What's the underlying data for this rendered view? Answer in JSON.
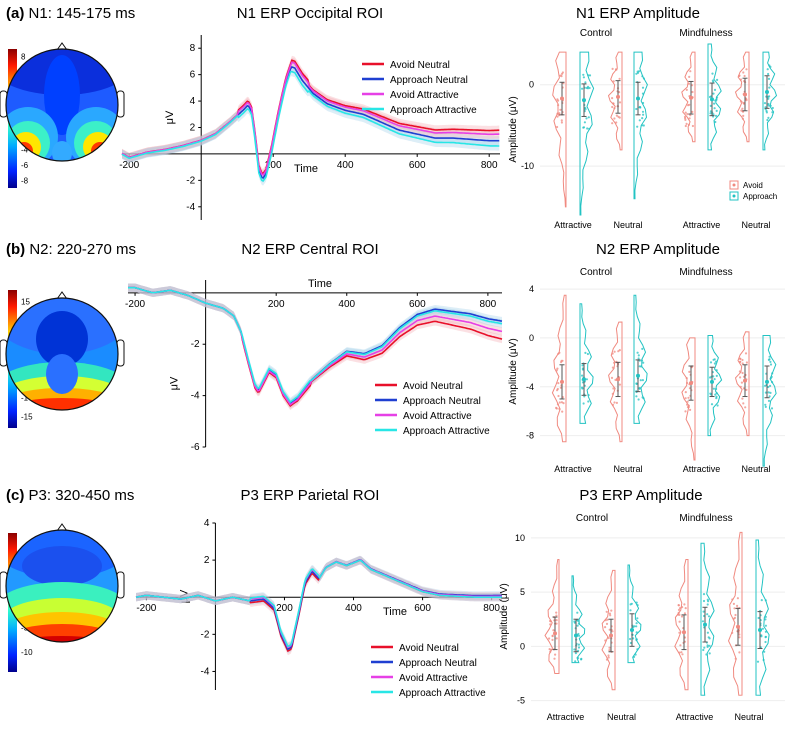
{
  "colors": {
    "avoid_neutral": "#e8102a",
    "approach_neutral": "#1f3fd1",
    "avoid_attractive": "#e640e6",
    "approach_attractive": "#28e6e6",
    "violin_avoid": "#f08a80",
    "violin_approach": "#22c3c3",
    "ci_avoid": "#f3a6b0",
    "ci_approach": "#9fcde8"
  },
  "legend_labels": [
    "Avoid Neutral",
    "Approach Neutral",
    "Avoid Attractive",
    "Approach Attractive"
  ],
  "violin_legend": [
    "Avoid",
    "Approach"
  ],
  "chart_data": [
    {
      "type": "topomap",
      "panel": "(a)",
      "title": "N1: 145-175 ms",
      "colorbar_ticks": [
        "8",
        "6",
        "4",
        "2",
        "0",
        "-2",
        "-4",
        "-6",
        "-8"
      ],
      "colorbar_range": [
        -9,
        9
      ],
      "pattern": "negative bilateral occipital"
    },
    {
      "type": "line",
      "title": "N1 ERP Occipital ROI",
      "xlabel": "Time",
      "ylabel": "μV",
      "xlim": [
        -220,
        830
      ],
      "ylim": [
        -5,
        9
      ],
      "x_ticks": [
        -200,
        200,
        400,
        600,
        800
      ],
      "y_ticks": [
        -4,
        -2,
        2,
        4,
        6,
        8
      ],
      "keypoints": [
        [
          -220,
          0
        ],
        [
          -200,
          -0.3
        ],
        [
          -150,
          0.1
        ],
        [
          -100,
          0.3
        ],
        [
          -50,
          0.6
        ],
        [
          0,
          1.0
        ],
        [
          40,
          1.5
        ],
        [
          80,
          2.4
        ],
        [
          120,
          3.4
        ],
        [
          130,
          3.7
        ],
        [
          140,
          3.2
        ],
        [
          150,
          1.2
        ],
        [
          160,
          -1.2
        ],
        [
          170,
          -1.9
        ],
        [
          180,
          -1.5
        ],
        [
          195,
          0.2
        ],
        [
          215,
          3.0
        ],
        [
          235,
          5.4
        ],
        [
          250,
          6.6
        ],
        [
          260,
          6.5
        ],
        [
          280,
          5.6
        ],
        [
          310,
          4.6
        ],
        [
          350,
          3.8
        ],
        [
          400,
          3.3
        ],
        [
          450,
          3.0
        ],
        [
          500,
          2.4
        ],
        [
          550,
          1.8
        ],
        [
          600,
          1.5
        ],
        [
          650,
          1.2
        ],
        [
          700,
          1.2
        ],
        [
          750,
          1.1
        ],
        [
          800,
          1.0
        ],
        [
          830,
          1.0
        ]
      ],
      "series": [
        {
          "name": "Avoid Neutral",
          "offsets": [
            0.2,
            0.8
          ],
          "peak": 0.3
        },
        {
          "name": "Approach Neutral",
          "offsets": [
            0.0,
            0.0
          ],
          "peak": 0.0
        },
        {
          "name": "Avoid Attractive",
          "offsets": [
            0.15,
            0.5
          ],
          "peak": 0.2
        },
        {
          "name": "Approach Attractive",
          "offsets": [
            -0.15,
            -0.4
          ],
          "peak": -0.2
        }
      ]
    },
    {
      "type": "violin",
      "title": "N1 ERP  Amplitude",
      "ylabel": "Amplitude (μV)",
      "ylim": [
        -16,
        5
      ],
      "y_ticks": [
        -10,
        0
      ],
      "groups": [
        "Control",
        "Mindfulness"
      ],
      "categories": [
        "Attractive",
        "Neutral"
      ],
      "series": [
        {
          "name": "Avoid",
          "means": [
            [
              -1.7,
              -1.5
            ],
            [
              -1.6,
              -1.2
            ]
          ],
          "min": [
            [
              -15,
              -8
            ],
            [
              -7,
              -7
            ]
          ],
          "max": [
            [
              4,
              4
            ],
            [
              4,
              4
            ]
          ],
          "sd": [
            [
              2,
              2
            ],
            [
              2,
              2
            ]
          ]
        },
        {
          "name": "Approach",
          "means": [
            [
              -1.9,
              -1.7
            ],
            [
              -1.8,
              -0.9
            ]
          ],
          "min": [
            [
              -16,
              -14
            ],
            [
              -8,
              -8
            ]
          ],
          "max": [
            [
              4,
              4
            ],
            [
              5,
              4
            ]
          ],
          "sd": [
            [
              2,
              2
            ],
            [
              2,
              2
            ]
          ]
        }
      ]
    },
    {
      "type": "topomap",
      "panel": "(b)",
      "title": "N2: 220-270 ms",
      "colorbar_ticks": [
        "15",
        "10",
        "5",
        "0",
        "-5",
        "-10",
        "-15"
      ],
      "colorbar_range": [
        -18,
        18
      ],
      "pattern": "positive posterior, negative frontal-central"
    },
    {
      "type": "line",
      "title": "N2 ERP Central ROI",
      "xlabel": "Time",
      "ylabel": "μV",
      "xlim": [
        -220,
        840
      ],
      "ylim": [
        -6,
        0.5
      ],
      "x_ticks": [
        -200,
        200,
        400,
        600,
        800
      ],
      "y_ticks": [
        -2,
        -4,
        -6
      ],
      "keypoints": [
        [
          -220,
          0.2
        ],
        [
          -200,
          0.2
        ],
        [
          -150,
          0.0
        ],
        [
          -100,
          0.1
        ],
        [
          -50,
          -0.1
        ],
        [
          0,
          -0.4
        ],
        [
          50,
          -0.6
        ],
        [
          80,
          -0.9
        ],
        [
          100,
          -1.5
        ],
        [
          120,
          -2.6
        ],
        [
          140,
          -3.6
        ],
        [
          150,
          -3.8
        ],
        [
          165,
          -3.4
        ],
        [
          180,
          -3.0
        ],
        [
          200,
          -3.2
        ],
        [
          220,
          -3.9
        ],
        [
          240,
          -4.3
        ],
        [
          260,
          -4.1
        ],
        [
          300,
          -3.4
        ],
        [
          350,
          -2.8
        ],
        [
          400,
          -2.3
        ],
        [
          450,
          -2.4
        ],
        [
          500,
          -2.1
        ],
        [
          550,
          -1.4
        ],
        [
          600,
          -0.9
        ],
        [
          650,
          -0.7
        ],
        [
          700,
          -0.8
        ],
        [
          750,
          -0.9
        ],
        [
          800,
          -1.1
        ],
        [
          840,
          -1.2
        ]
      ],
      "series": [
        {
          "name": "Avoid Neutral",
          "offsets": [
            0.0,
            -0.6
          ],
          "peak": -0.1
        },
        {
          "name": "Approach Neutral",
          "offsets": [
            0.0,
            0.1
          ],
          "peak": 0.0
        },
        {
          "name": "Avoid Attractive",
          "offsets": [
            0.0,
            -0.3
          ],
          "peak": -0.05
        },
        {
          "name": "Approach Attractive",
          "offsets": [
            0.0,
            0.0
          ],
          "peak": 0.05
        }
      ]
    },
    {
      "type": "violin",
      "title": "N2 ERP  Amplitude",
      "ylabel": "Amplitude (μV)",
      "ylim": [
        -10,
        4.5
      ],
      "y_ticks": [
        4,
        0,
        -4,
        -8
      ],
      "groups": [
        "Control",
        "Mindfulness"
      ],
      "categories": [
        "Attractive",
        "Neutral"
      ],
      "series": [
        {
          "name": "Avoid",
          "means": [
            [
              -3.6,
              -3.4
            ],
            [
              -3.7,
              -3.5
            ]
          ],
          "min": [
            [
              -8.5,
              -8.5
            ],
            [
              -10,
              -8
            ]
          ],
          "max": [
            [
              3.5,
              1.3
            ],
            [
              0,
              0.5
            ]
          ],
          "sd": [
            [
              1.4,
              1.4
            ],
            [
              1.4,
              1.3
            ]
          ]
        },
        {
          "name": "Approach",
          "means": [
            [
              -3.4,
              -3.1
            ],
            [
              -3.6,
              -3.6
            ]
          ],
          "min": [
            [
              -7,
              -7
            ],
            [
              -8,
              -10.5
            ]
          ],
          "max": [
            [
              2.8,
              3.5
            ],
            [
              0.2,
              0.2
            ]
          ],
          "sd": [
            [
              1.3,
              1.3
            ],
            [
              1.2,
              1.3
            ]
          ]
        }
      ]
    },
    {
      "type": "topomap",
      "panel": "(c)",
      "title": "P3: 320-450 ms",
      "colorbar_ticks": [
        "10",
        "5",
        "0",
        "-5",
        "-10"
      ],
      "colorbar_range": [
        -14,
        14
      ],
      "pattern": "positive parietal"
    },
    {
      "type": "line",
      "title": "P3 ERP Parietal ROI",
      "xlabel": "Time",
      "ylabel": "μV",
      "xlim": [
        -230,
        830
      ],
      "ylim": [
        -5,
        4
      ],
      "x_ticks": [
        -200,
        200,
        400,
        600,
        800
      ],
      "y_ticks": [
        4,
        2,
        -2,
        -4
      ],
      "keypoints": [
        [
          -230,
          0
        ],
        [
          -200,
          0.1
        ],
        [
          -150,
          0.0
        ],
        [
          -100,
          -0.1
        ],
        [
          -50,
          0.1
        ],
        [
          0,
          -0.2
        ],
        [
          50,
          0.0
        ],
        [
          100,
          -0.2
        ],
        [
          140,
          -0.1
        ],
        [
          170,
          -0.6
        ],
        [
          190,
          -2.0
        ],
        [
          210,
          -2.8
        ],
        [
          220,
          -2.7
        ],
        [
          240,
          -1.0
        ],
        [
          260,
          0.8
        ],
        [
          280,
          1.4
        ],
        [
          300,
          1.0
        ],
        [
          320,
          1.6
        ],
        [
          350,
          1.9
        ],
        [
          380,
          1.7
        ],
        [
          420,
          2.0
        ],
        [
          450,
          1.5
        ],
        [
          500,
          1.1
        ],
        [
          550,
          0.7
        ],
        [
          600,
          0.3
        ],
        [
          650,
          0.1
        ],
        [
          700,
          0.05
        ],
        [
          750,
          0.0
        ],
        [
          800,
          0.0
        ],
        [
          830,
          0.0
        ]
      ],
      "series": [
        {
          "name": "Avoid Neutral",
          "offsets": [
            0.0,
            0.0
          ],
          "peak": -0.1
        },
        {
          "name": "Approach Neutral",
          "offsets": [
            0.0,
            0.1
          ],
          "peak": 0.0
        },
        {
          "name": "Avoid Attractive",
          "offsets": [
            0.0,
            0.05
          ],
          "peak": 0.1
        },
        {
          "name": "Approach Attractive",
          "offsets": [
            0.0,
            0.0
          ],
          "peak": 0.15
        }
      ]
    },
    {
      "type": "violin",
      "title": "P3 ERP  Amplitude",
      "ylabel": "Amplitude (μV)",
      "ylim": [
        -5.5,
        11
      ],
      "y_ticks": [
        10,
        5,
        0,
        -5
      ],
      "groups": [
        "Control",
        "Mindfulness"
      ],
      "categories": [
        "Attractive",
        "Neutral"
      ],
      "series": [
        {
          "name": "Avoid",
          "means": [
            [
              1.2,
              1.0
            ],
            [
              1.3,
              1.8
            ]
          ],
          "min": [
            [
              -2.5,
              -4
            ],
            [
              -4,
              -4.5
            ]
          ],
          "max": [
            [
              8,
              7
            ],
            [
              8,
              10.5
            ]
          ],
          "sd": [
            [
              1.5,
              1.5
            ],
            [
              1.6,
              1.7
            ]
          ]
        },
        {
          "name": "Approach",
          "means": [
            [
              1.0,
              1.5
            ],
            [
              2.0,
              1.5
            ]
          ],
          "min": [
            [
              -1.5,
              -1.5
            ],
            [
              -4.5,
              -4.5
            ]
          ],
          "max": [
            [
              6.5,
              7.5
            ],
            [
              9.5,
              9.8
            ]
          ],
          "sd": [
            [
              1.5,
              1.5
            ],
            [
              1.6,
              1.7
            ]
          ]
        }
      ]
    }
  ]
}
